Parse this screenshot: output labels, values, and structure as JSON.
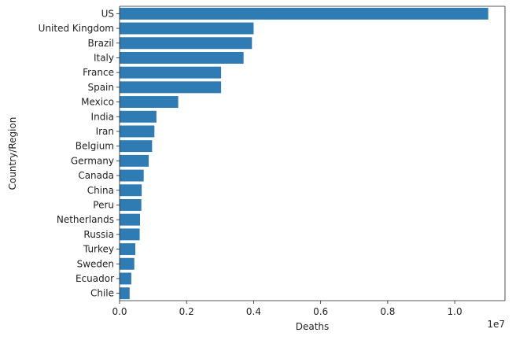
{
  "chart_data": {
    "type": "bar",
    "orientation": "horizontal",
    "xlabel": "Deaths",
    "ylabel": "Country/Region",
    "offset_label": "1e7",
    "xlim": [
      0,
      11500000
    ],
    "x_ticks": [
      0,
      2000000,
      4000000,
      6000000,
      8000000,
      10000000
    ],
    "x_tick_labels": [
      "0.0",
      "0.2",
      "0.4",
      "0.6",
      "0.8",
      "1.0"
    ],
    "categories": [
      "US",
      "United Kingdom",
      "Brazil",
      "Italy",
      "France",
      "Spain",
      "Mexico",
      "India",
      "Iran",
      "Belgium",
      "Germany",
      "Canada",
      "China",
      "Peru",
      "Netherlands",
      "Russia",
      "Turkey",
      "Sweden",
      "Ecuador",
      "Chile"
    ],
    "values": [
      11000000,
      4000000,
      3950000,
      3700000,
      3030000,
      3030000,
      1750000,
      1100000,
      1040000,
      970000,
      870000,
      720000,
      660000,
      650000,
      610000,
      600000,
      470000,
      440000,
      350000,
      300000
    ],
    "color": "#2f7bb4",
    "grid": false,
    "legend": "none"
  }
}
